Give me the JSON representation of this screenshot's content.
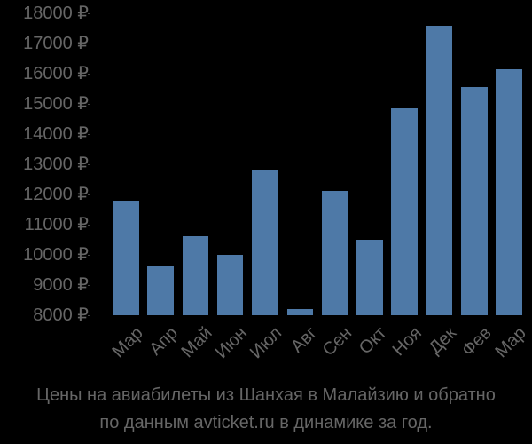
{
  "chart_data": {
    "type": "bar",
    "title": "Цены на авиабилеты из Шанхая в Малайзию и обратно по данным avticket.ru в динамике за год.",
    "title_lines": [
      "Цены на авиабилеты из Шанхая в Малайзию и обратно",
      "по данным avticket.ru в динамике за год."
    ],
    "xlabel": "",
    "ylabel": "",
    "categories": [
      "Мар",
      "Апр",
      "Май",
      "Июн",
      "Июл",
      "Авг",
      "Сен",
      "Окт",
      "Ноя",
      "Дек",
      "Фев",
      "Мар"
    ],
    "values": [
      11800,
      9600,
      10600,
      10000,
      12800,
      8200,
      12100,
      10500,
      14850,
      17600,
      15550,
      16150
    ],
    "ylim": [
      8000,
      18000
    ],
    "yticks": [
      8000,
      9000,
      10000,
      11000,
      12000,
      13000,
      14000,
      15000,
      16000,
      17000,
      18000
    ],
    "ytick_labels": [
      "8000 ₽",
      "9000 ₽",
      "10000 ₽",
      "11000 ₽",
      "12000 ₽",
      "13000 ₽",
      "14000 ₽",
      "15000 ₽",
      "16000 ₽",
      "17000 ₽",
      "18000 ₽"
    ],
    "grid": false,
    "legend": null,
    "bar_color": "#4e79a7",
    "text_color": "#666666"
  }
}
